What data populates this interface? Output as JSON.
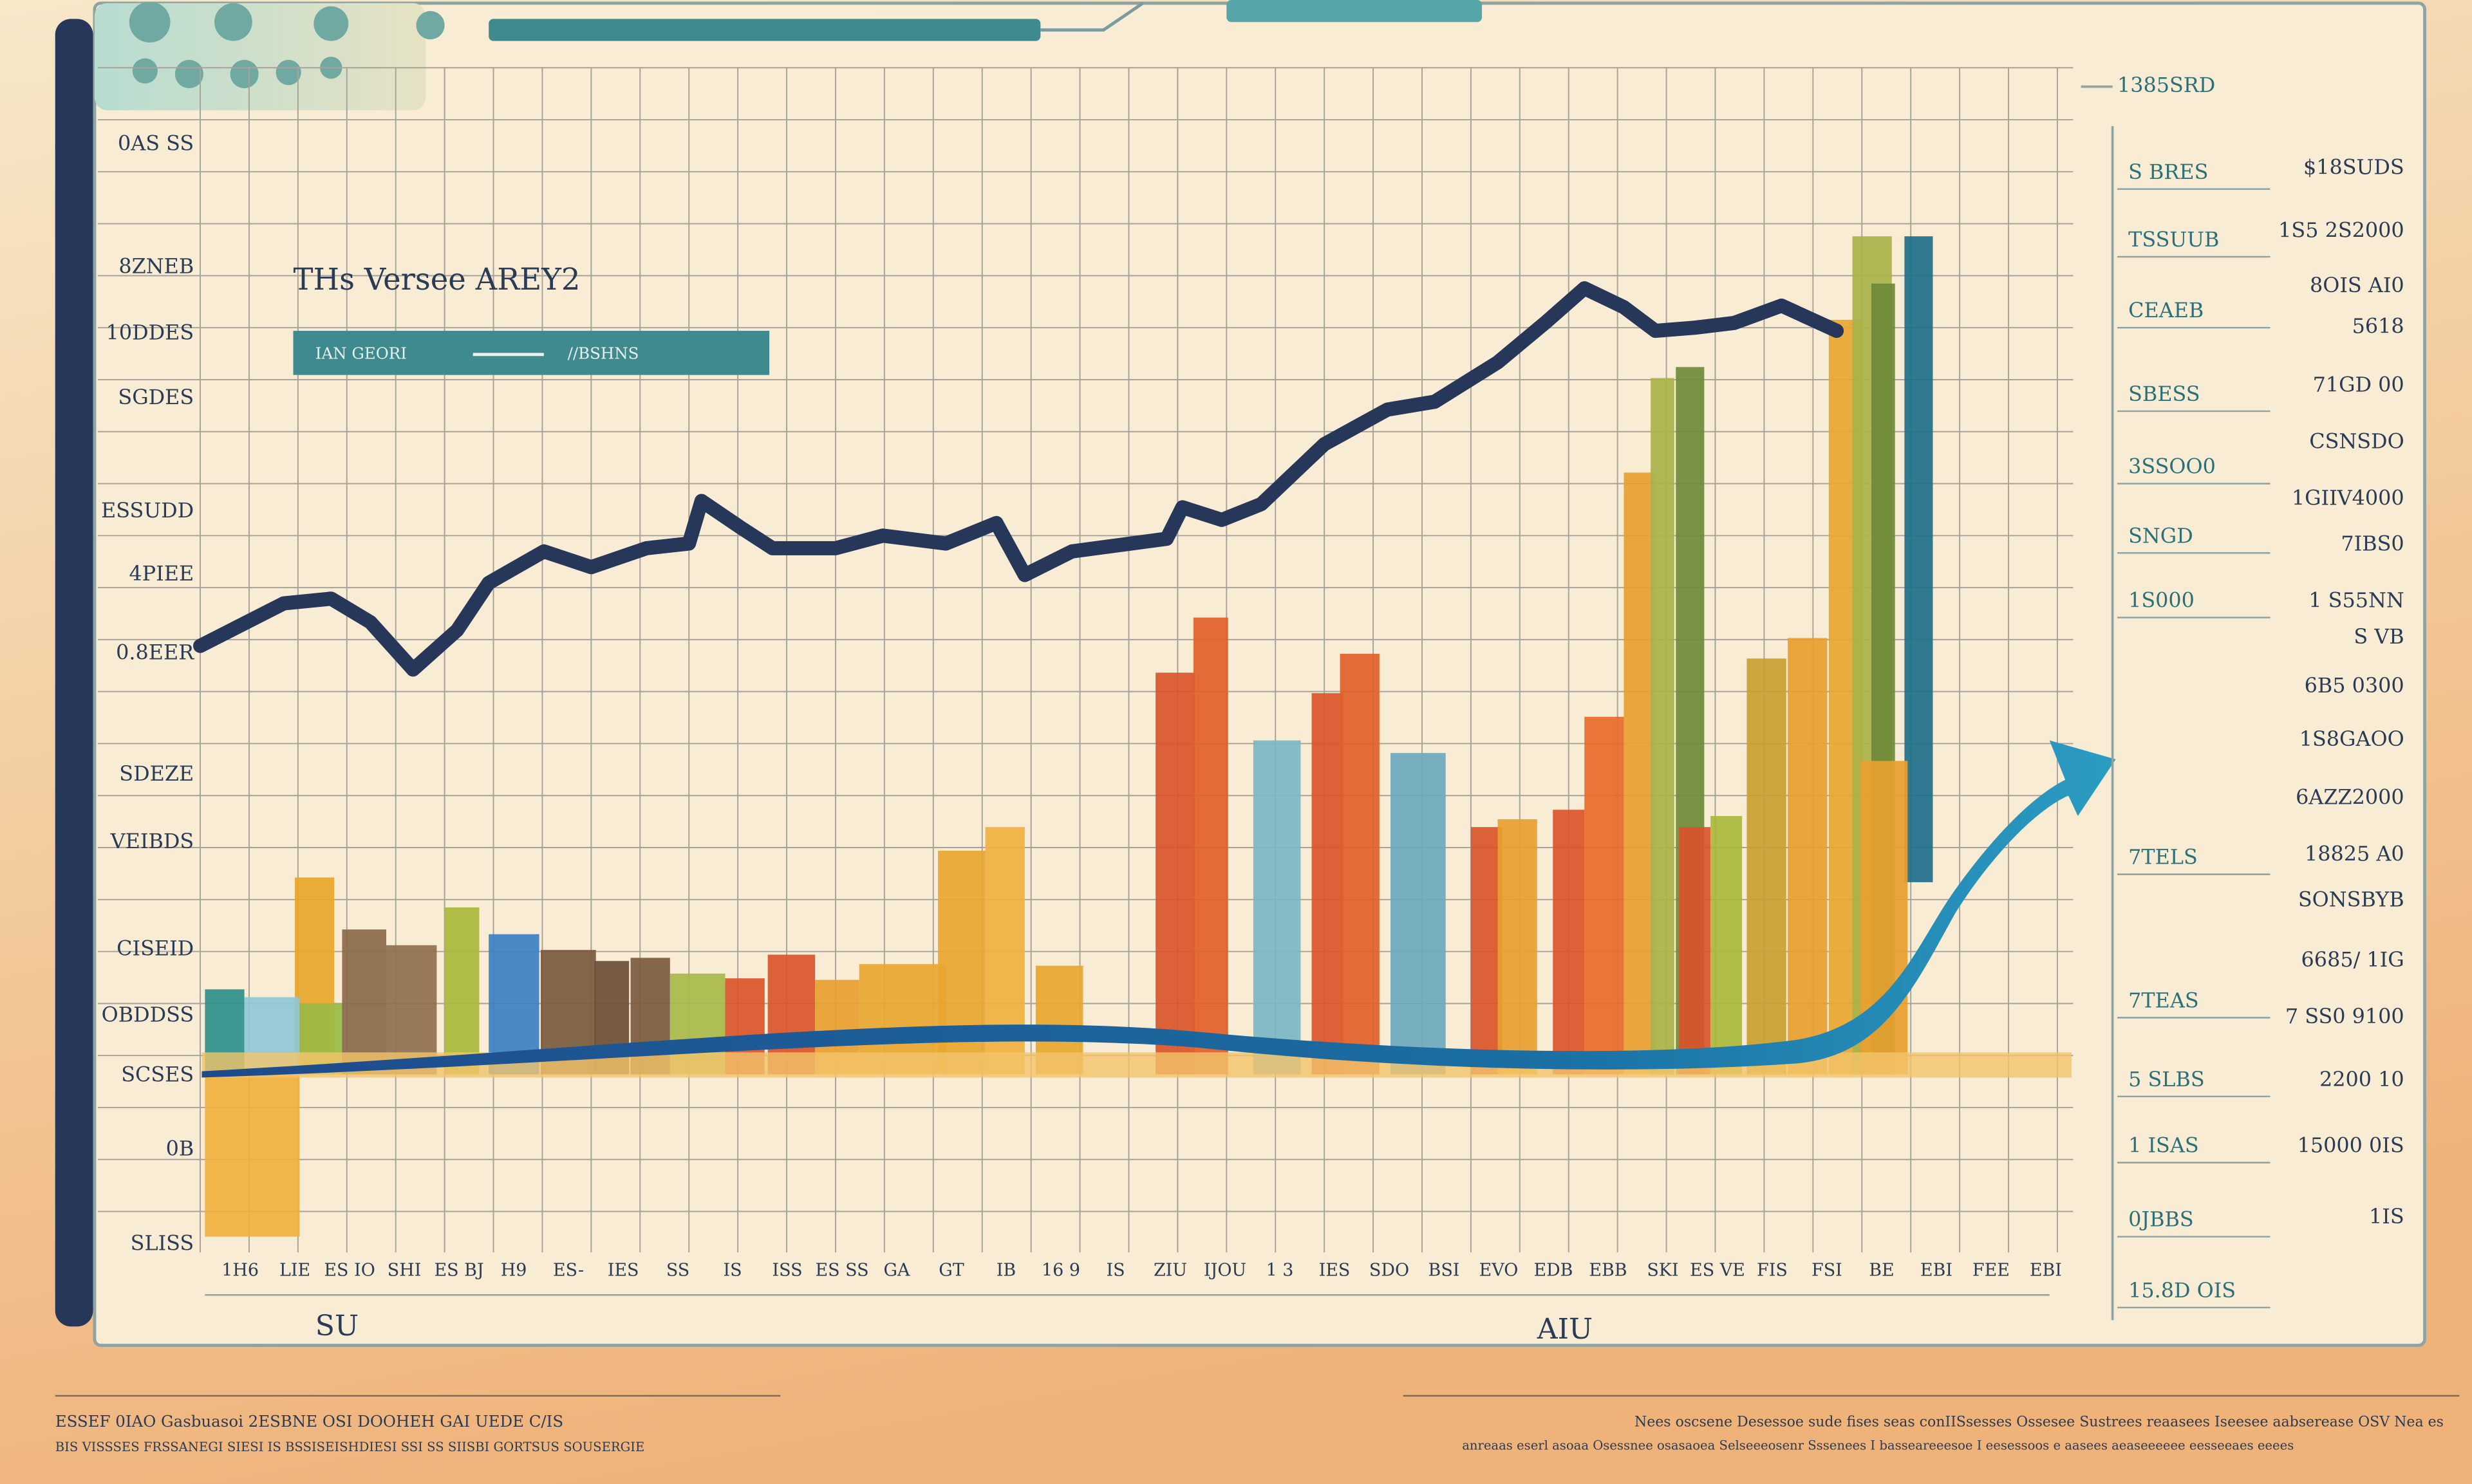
{
  "header": {
    "title": "THs Versee AREY2",
    "legend": [
      "IAN GEORI",
      "//BSHNS"
    ]
  },
  "axis_left": [
    "0AS SS",
    "8ZNEB",
    "10DDES",
    "SGDES",
    "ESSUDD",
    "4PIEE",
    "0.8EER",
    "SDEZE",
    "VEIBDS",
    "CISEID",
    "OBDDSS",
    "SCSES",
    "0B",
    "SLISS"
  ],
  "right_panel": {
    "top": "1385SRD",
    "codes": [
      "S BRES",
      "TSSUUB",
      "CEAEB",
      "SBESS",
      "3SSOO0",
      "SNGD",
      "1S000",
      "7TELS",
      "7TEAS",
      "5 SLBS",
      "1 ISAS",
      "0JBBS",
      "15.8D OIS"
    ],
    "amounts": [
      "$18SUDS",
      "1S5 2S2000",
      "8OIS AI0",
      "5618",
      "71GD 00",
      "CSNSDO",
      "1GIIV4000",
      "7IBS0",
      "1 S55NN",
      "S VB",
      "6B5 0300",
      "1S8GAOO",
      "6AZZ2000",
      "18825 A0",
      "SONSBYB",
      "6685/ 1IG",
      "7 SS0 9100",
      "2200 10",
      "15000 0IS",
      "1IS"
    ]
  },
  "x_labels": [
    "1H6",
    "LIE",
    "ES IO",
    "SHI",
    "ES BJ",
    "H9",
    "ES-",
    "IES",
    "SS",
    "IS",
    "ISS",
    "ES SS",
    "GA",
    "GT",
    "IB",
    "16 9",
    "IS",
    "ZIU",
    "IJOU",
    "1 3",
    "IES",
    "SDO",
    "BSI",
    "EVO",
    "EDB",
    "EBB",
    "SKI",
    "ES VE",
    "FIS",
    "FSI",
    "BE",
    "EBI",
    "FEE",
    "EBI"
  ],
  "x_notes": [
    "SU",
    "AIU"
  ],
  "footer": {
    "left": [
      "ESSEF 0IAO  Gasbuasoi 2ESBNE  OSI  DOOHEH  GAI UEDE  C/IS",
      "BIS VISSSES FRSSANEGI SIESI IS BSSISEISHDIESI SSI SS SIISBI GORTSUS SOUSERGIE"
    ],
    "right": [
      "Nees  oscsene  Desessoe  sude  fises  seas  conIISsesses  Ossesee  Sustrees  reaasees  Iseesee  aabserease  OSV  Nea es",
      "anreaas  eserl  asoaa  Osessnee  osasaoea  Selseeeosenr  Sssenees  I  basseareeesoe  I  eesessoos  e  aasees  aeaseeeeee  eesseeaes  eeees"
    ]
  }
}
